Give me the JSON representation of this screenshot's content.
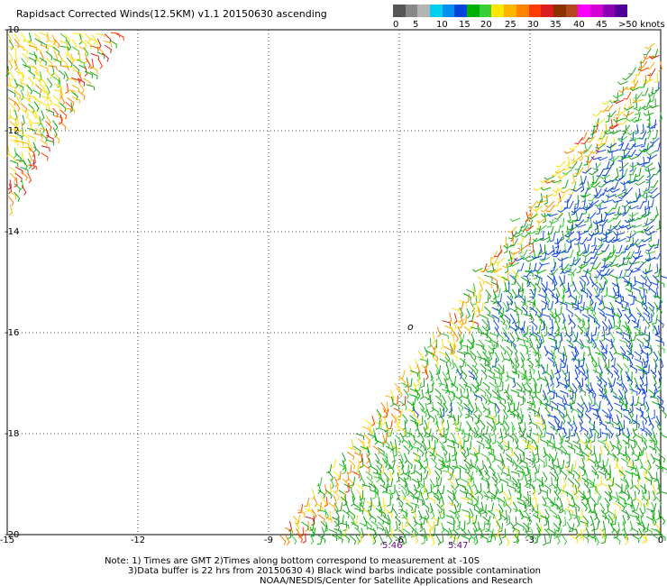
{
  "title": "Rapidsact Corrected Winds(12.5KM) v1.1 20150630 ascending",
  "legend": {
    "units_label": ">50 knots",
    "colors": [
      "#555555",
      "#888888",
      "#b4b4b4",
      "#00d0f0",
      "#0090f0",
      "#0046dc",
      "#00b000",
      "#36d036",
      "#ffe600",
      "#ffb400",
      "#ff8200",
      "#ff3c00",
      "#dc1e1e",
      "#8c3200",
      "#b4461e",
      "#ff00ff",
      "#d200d2",
      "#8c00b4",
      "#500096"
    ],
    "ticks": [
      "0",
      "5",
      "10",
      "15",
      "20",
      "25",
      "30",
      "35",
      "40",
      "45"
    ]
  },
  "axes": {
    "x_ticks": [
      "-15",
      "-12",
      "-9",
      "-6",
      "-3",
      "0"
    ],
    "y_ticks": [
      "-10",
      "-12",
      "-14",
      "-16",
      "-18",
      "-20"
    ]
  },
  "times": [
    "5:46",
    "5:47"
  ],
  "island_marker": "o",
  "notes": [
    "Note: 1) Times are GMT 2)Times along bottom correspond to measurement at -10S",
    "3)Data buffer is 22 hrs from 20150630 4) Black wind barbs indicate possible contamination",
    "NOAA/NESDIS/Center for Satellite Applications and Research"
  ]
}
